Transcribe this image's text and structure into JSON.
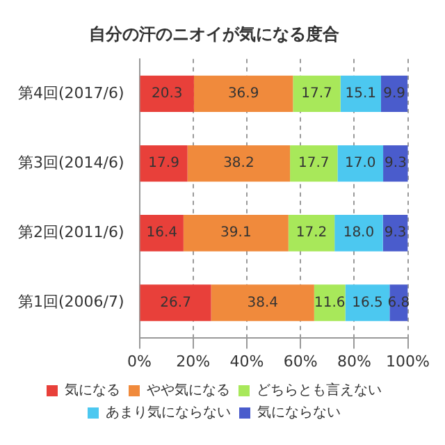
{
  "chart_data": {
    "type": "bar",
    "orientation": "horizontal",
    "stacked": true,
    "title": "自分の汗のニオイが気になる度合",
    "categories": [
      "第4回(2017/6)",
      "第3回(2014/6)",
      "第2回(2011/6)",
      "第1回(2006/7)"
    ],
    "series": [
      {
        "name": "気になる",
        "color": "#e8403a",
        "values": [
          20.3,
          17.9,
          16.4,
          26.7
        ]
      },
      {
        "name": "やや気になる",
        "color": "#f08a3c",
        "values": [
          36.9,
          38.2,
          39.1,
          38.4
        ]
      },
      {
        "name": "どちらとも言えない",
        "color": "#a8e85a",
        "values": [
          17.7,
          17.7,
          17.2,
          11.6
        ]
      },
      {
        "name": "あまり気にならない",
        "color": "#4cc8f0",
        "values": [
          15.1,
          17.0,
          18.0,
          16.5
        ],
        "value_labels": [
          "15.1",
          "17.0",
          "18.0",
          "16.5"
        ]
      },
      {
        "name": "気にならない",
        "color": "#4a5ccc",
        "values": [
          9.9,
          9.3,
          9.3,
          6.8
        ]
      }
    ],
    "xlim": [
      0,
      100
    ],
    "xticks": [
      {
        "value": 0,
        "label": "0%"
      },
      {
        "value": 20,
        "label": "20%"
      },
      {
        "value": 40,
        "label": "40%"
      },
      {
        "value": 60,
        "label": "60%"
      },
      {
        "value": 80,
        "label": "80%"
      },
      {
        "value": 100,
        "label": "100%"
      }
    ],
    "grid": "x",
    "legend": "bottom",
    "data_labels": true
  }
}
